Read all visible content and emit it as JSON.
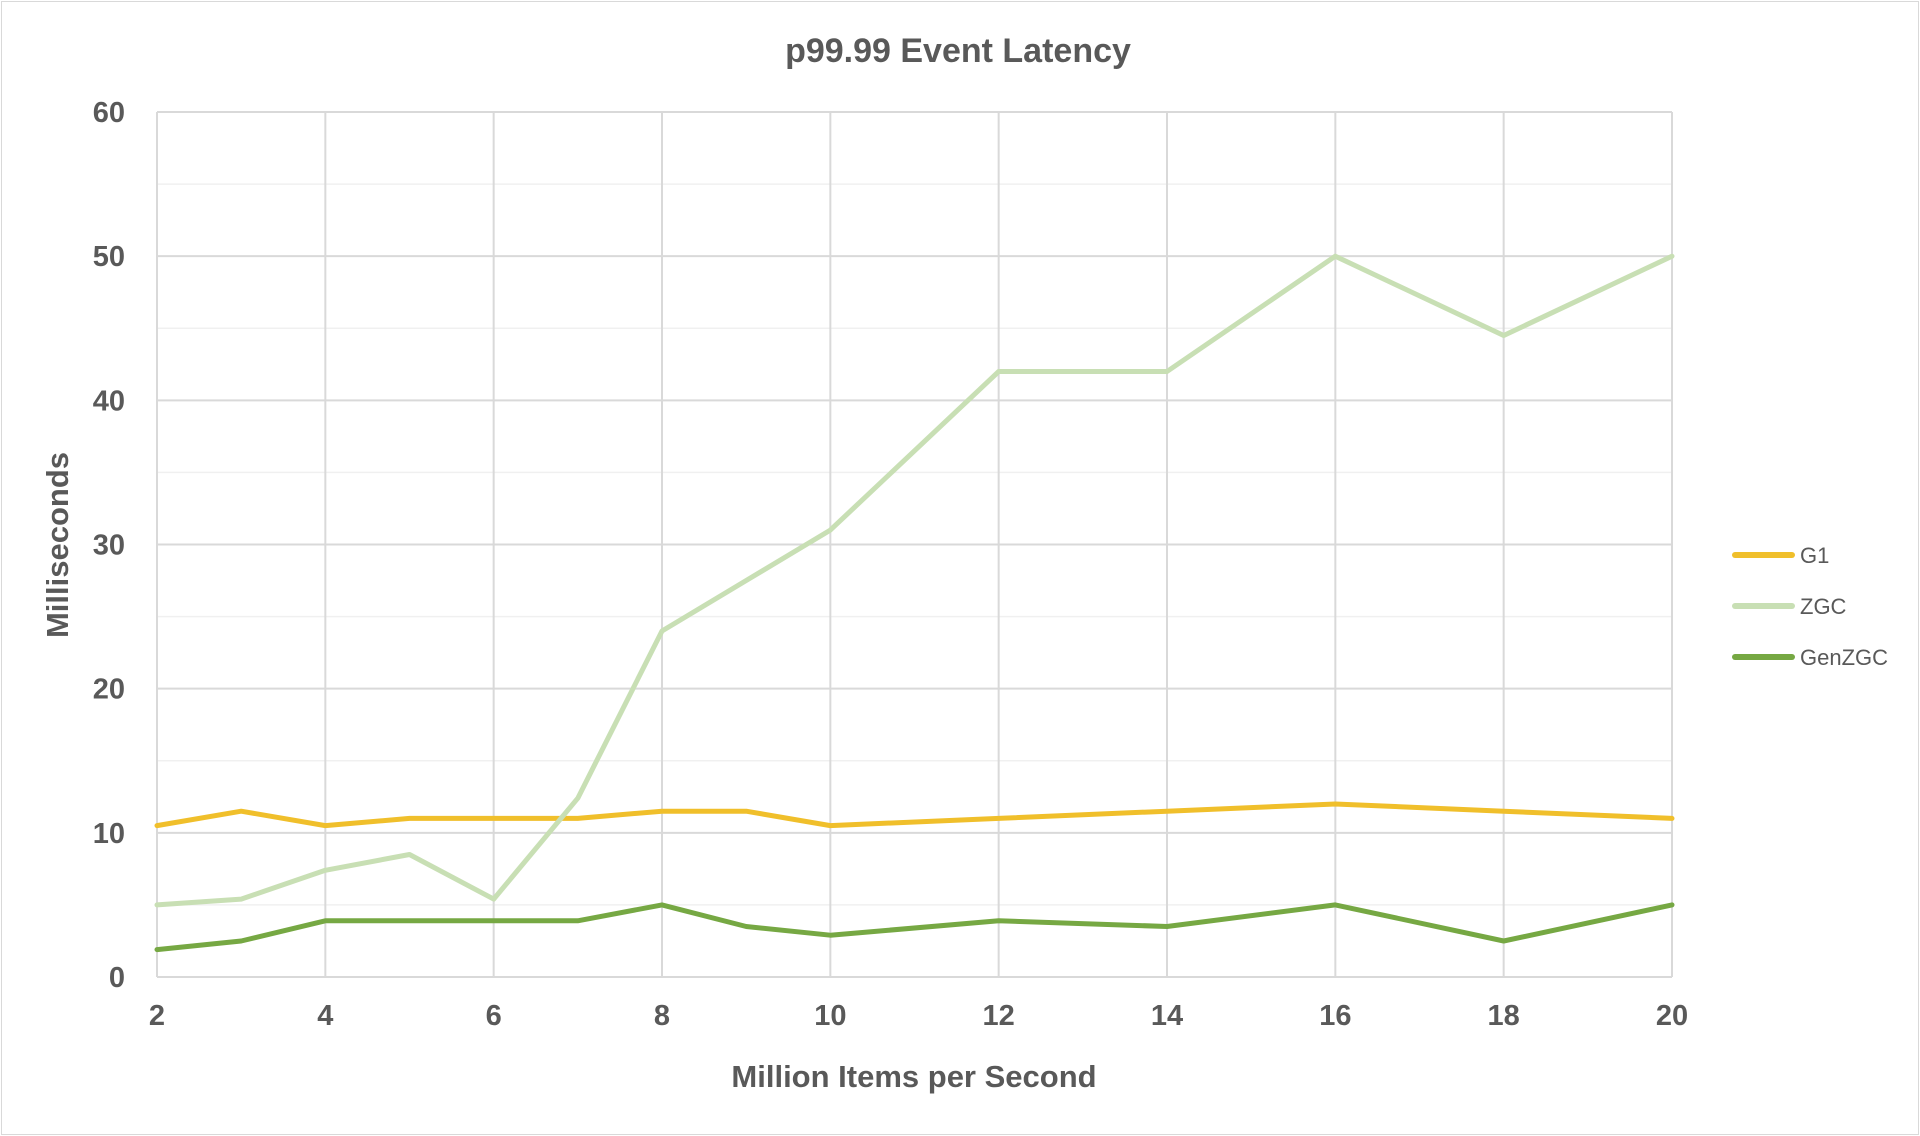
{
  "chart_data": {
    "type": "line",
    "title": "p99.99 Event Latency",
    "xlabel": "Million Items per Second",
    "ylabel": "Milliseconds",
    "xlim": [
      2,
      20
    ],
    "ylim": [
      0,
      60
    ],
    "x_ticks": [
      2,
      4,
      6,
      8,
      10,
      12,
      14,
      16,
      18,
      20
    ],
    "y_ticks": [
      0,
      10,
      20,
      30,
      40,
      50,
      60
    ],
    "grid": true,
    "legend_position": "right",
    "x": [
      2,
      3,
      4,
      5,
      6,
      7,
      8,
      9,
      10,
      12,
      14,
      16,
      18,
      20
    ],
    "series": [
      {
        "name": "G1",
        "color": "#f0bf2b",
        "values": [
          10.5,
          11.5,
          10.5,
          11.0,
          11.0,
          11.0,
          11.5,
          11.5,
          10.5,
          11.0,
          11.5,
          12.0,
          11.5,
          11.0
        ]
      },
      {
        "name": "ZGC",
        "color": "#c8dfb4",
        "values": [
          5.0,
          5.4,
          7.4,
          8.5,
          5.4,
          12.4,
          24.0,
          27.5,
          31.0,
          42.0,
          42.0,
          50.0,
          44.5,
          50.0
        ]
      },
      {
        "name": "GenZGC",
        "color": "#76a843",
        "values": [
          1.9,
          2.5,
          3.9,
          3.9,
          3.9,
          3.9,
          5.0,
          3.5,
          2.9,
          3.9,
          3.5,
          5.0,
          2.5,
          5.0
        ]
      }
    ]
  }
}
